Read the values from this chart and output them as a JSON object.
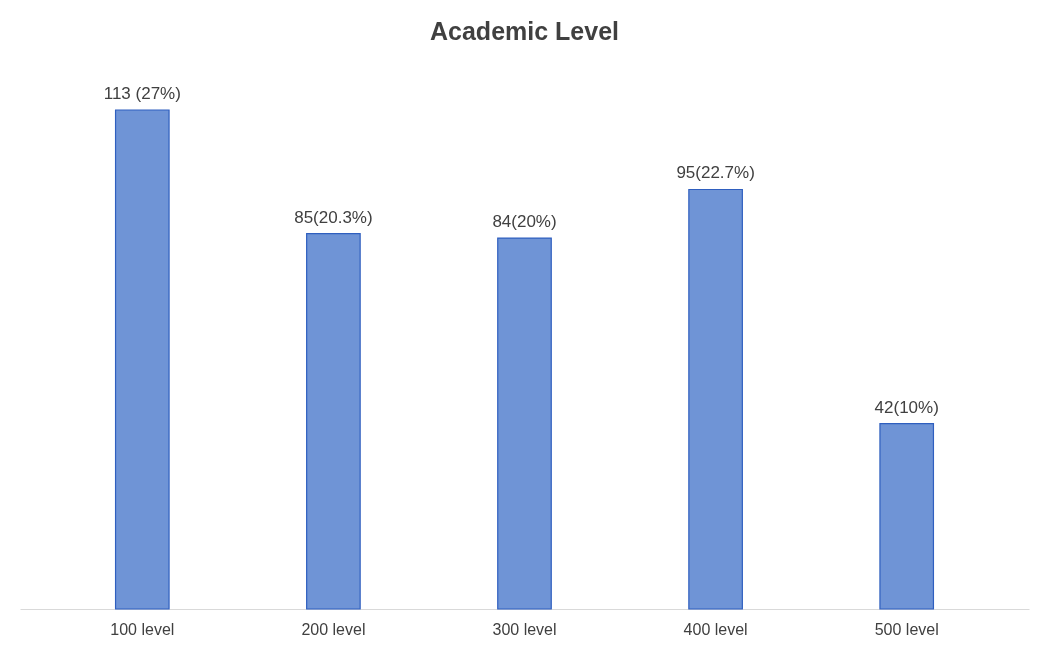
{
  "chart_data": {
    "type": "bar",
    "title": "Academic Level",
    "categories": [
      "100 level",
      "200 level",
      "300 level",
      "400 level",
      "500 level"
    ],
    "values": [
      113,
      85,
      84,
      95,
      42
    ],
    "value_labels": [
      "113 (27%)",
      "85(20.3%)",
      "84(20%)",
      "95(22.7%)",
      "42(10%)"
    ],
    "color": "#6f94d6"
  }
}
